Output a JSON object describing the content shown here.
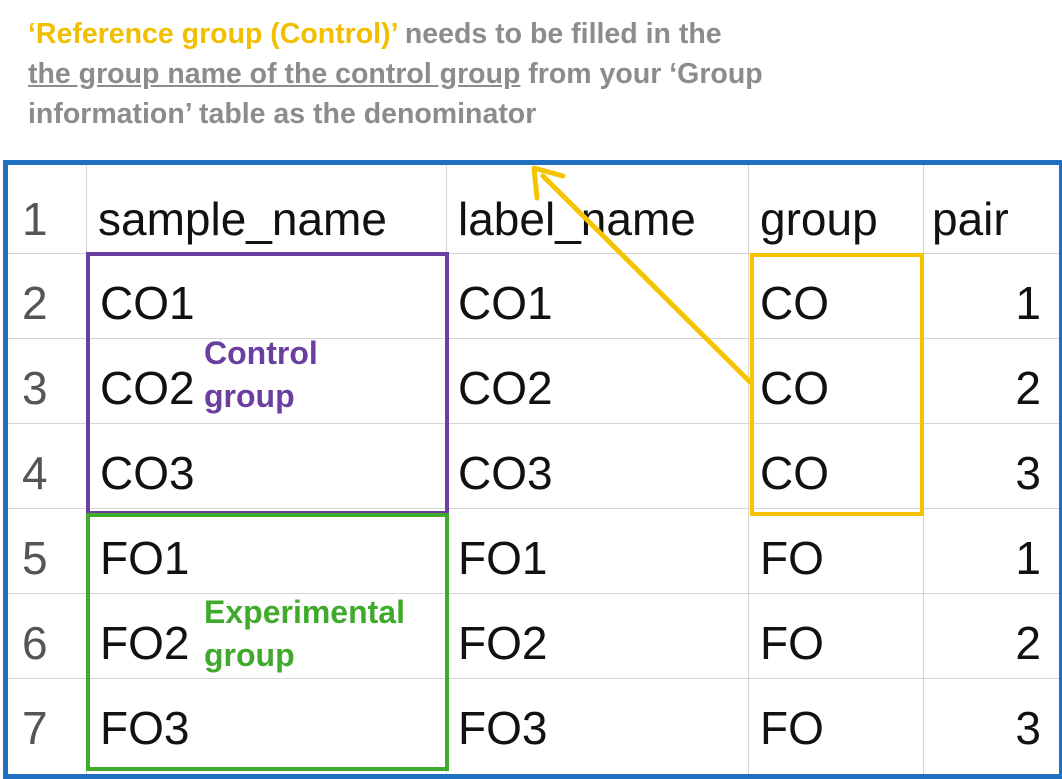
{
  "caption": {
    "highlight": "‘Reference group (Control)’",
    "line1_rest": " needs to be filled in the",
    "line2_underlined": "the group name of the control group",
    "line2_rest": " from your ‘Group",
    "line3": "information’ table as the denominator"
  },
  "table": {
    "headers": [
      "1",
      "sample_name",
      "label_name",
      "group",
      "pair"
    ],
    "rows": [
      [
        "2",
        "CO1",
        "CO1",
        "CO",
        "1"
      ],
      [
        "3",
        "CO2",
        "CO2",
        "CO",
        "2"
      ],
      [
        "4",
        "CO3",
        "CO3",
        "CO",
        "3"
      ],
      [
        "5",
        "FO1",
        "FO1",
        "FO",
        "1"
      ],
      [
        "6",
        "FO2",
        "FO2",
        "FO",
        "2"
      ],
      [
        "7",
        "FO3",
        "FO3",
        "FO",
        "3"
      ]
    ]
  },
  "annotations": {
    "control_label": [
      "Control",
      "group"
    ],
    "experimental_label": [
      "Experimental",
      "group"
    ]
  },
  "colors": {
    "sheet_border": "#1f6fc2",
    "control": "#6a3fa0",
    "experimental": "#3faa2c",
    "reference": "#f5c400",
    "caption_gray": "#8c8c8c"
  }
}
